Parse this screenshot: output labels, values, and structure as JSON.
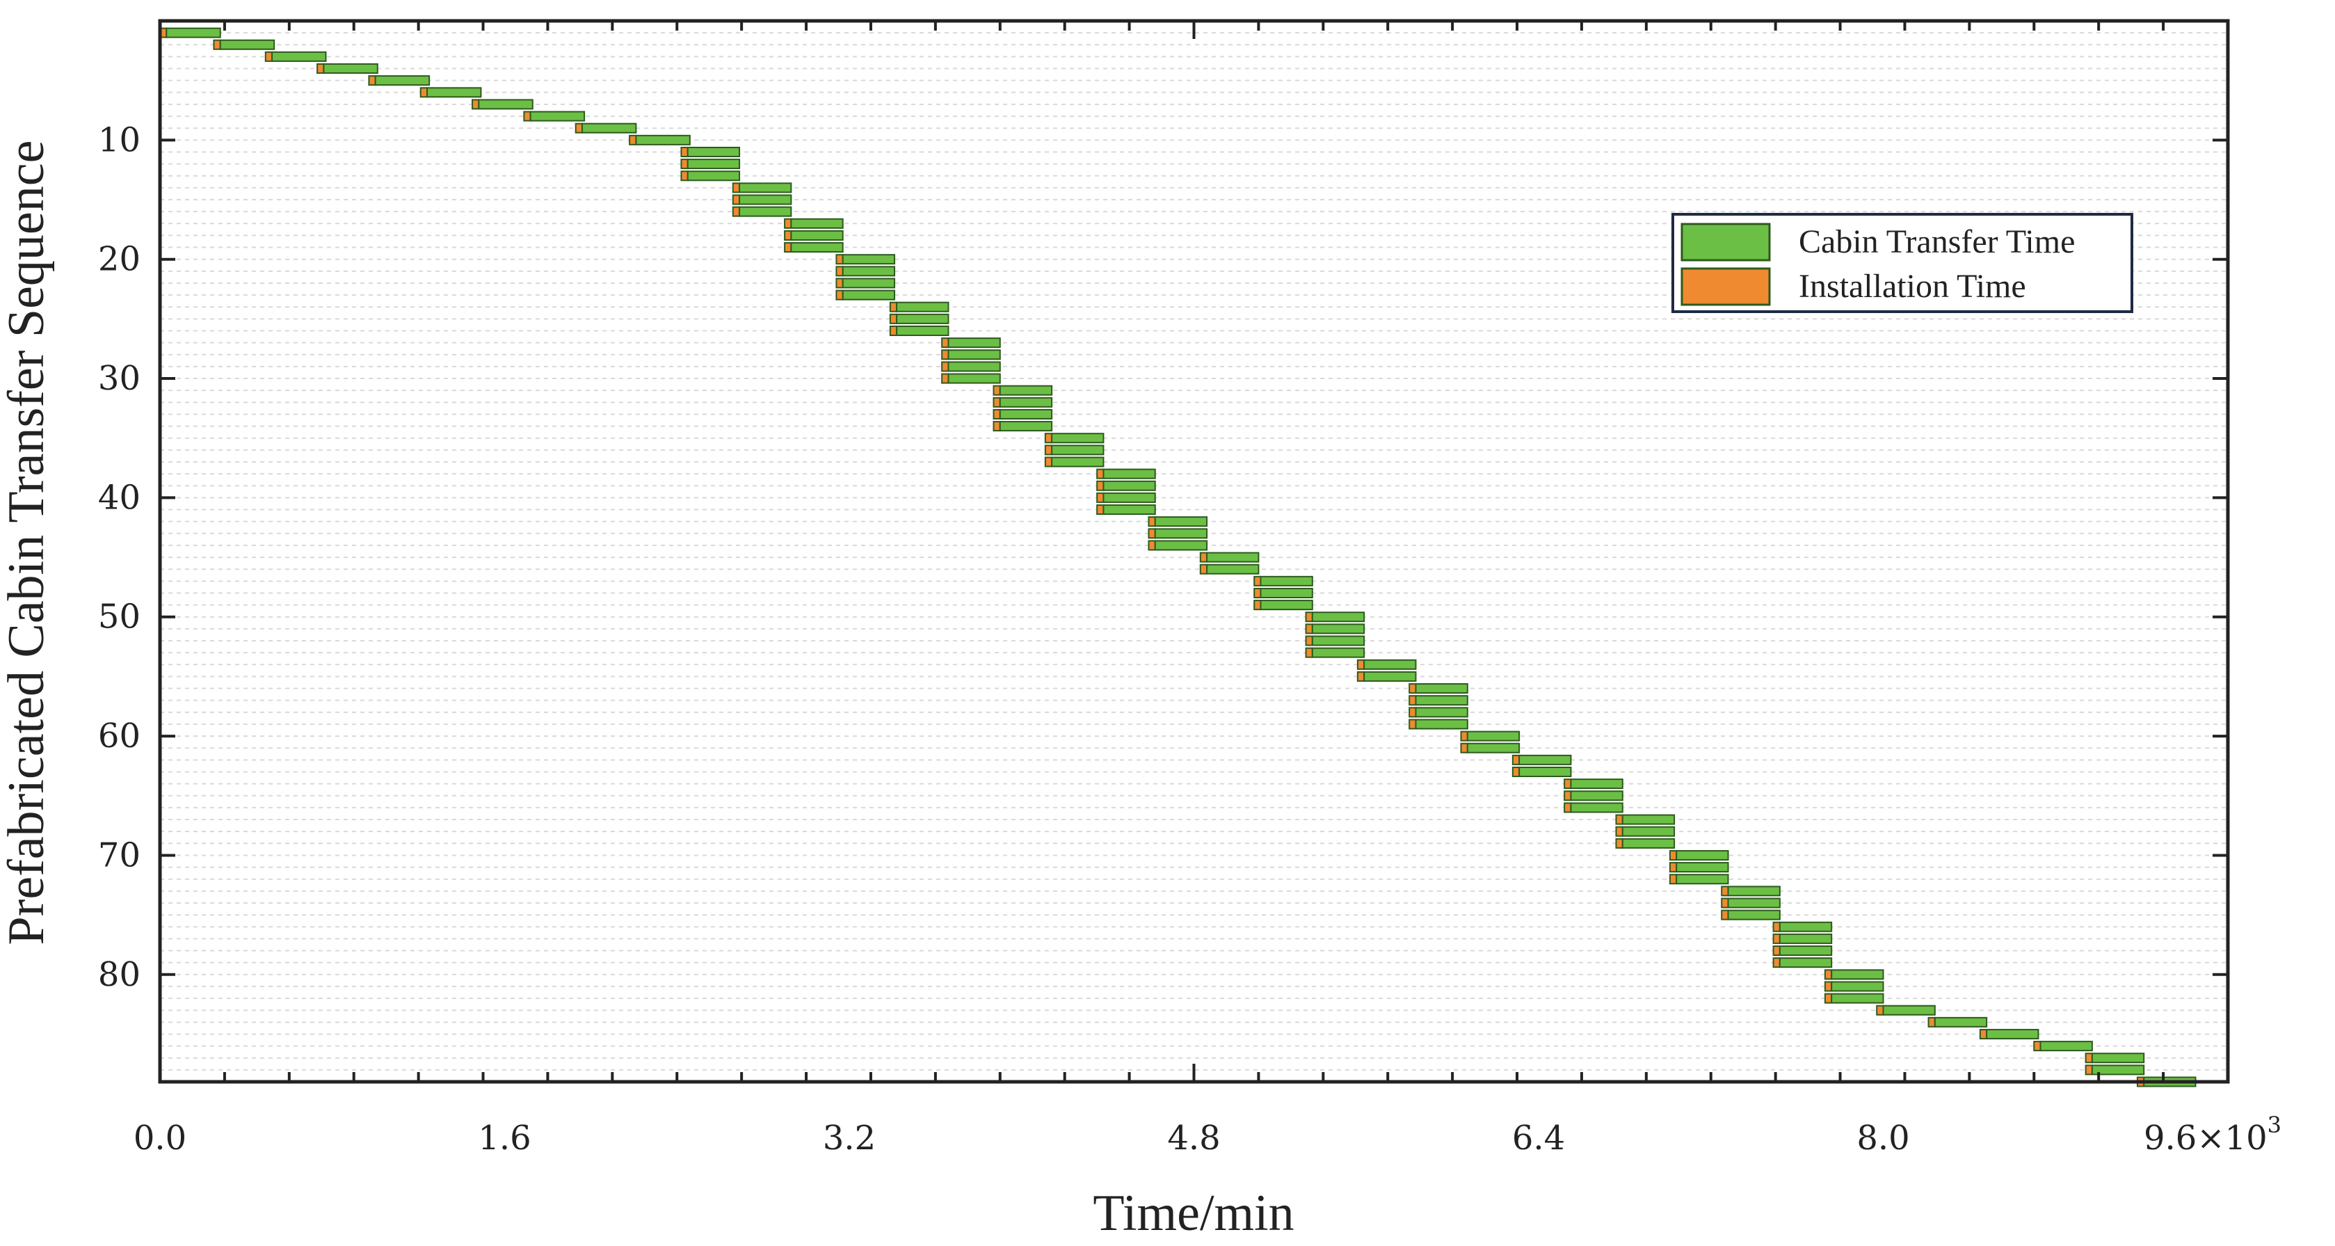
{
  "chart_data": {
    "type": "gantt",
    "xlabel": "Time/min",
    "ylabel": "Prefabricated Cabin Transfer Sequence",
    "xlim": [
      0,
      9600
    ],
    "ylim": [
      0,
      89
    ],
    "y_inverted": true,
    "x_ticks": [
      "0.0",
      "1.6",
      "3.2",
      "4.8",
      "6.4",
      "8.0",
      "9.6"
    ],
    "x_tick_values": [
      0,
      1600,
      3200,
      4800,
      6400,
      8000,
      9600
    ],
    "x_scale_note": "×10³",
    "x_scale_parts": [
      "9.6×10",
      "3"
    ],
    "y_ticks": [
      "10",
      "20",
      "30",
      "40",
      "50",
      "60",
      "70",
      "80"
    ],
    "y_tick_values": [
      10,
      20,
      30,
      40,
      50,
      60,
      70,
      80
    ],
    "grid": true,
    "legend": {
      "placement": "right",
      "entries": [
        {
          "label": "Cabin Transfer Time",
          "color": "#6cbf45"
        },
        {
          "label": "Installation Time",
          "color": "#f08a30"
        }
      ]
    },
    "colors": {
      "transfer": "#6cbf45",
      "installation": "#f08a30",
      "edge": "#2d5a1e"
    },
    "groups": [
      {
        "start": 0,
        "size": 1,
        "install": 30,
        "transfer": 250
      },
      {
        "start": 250,
        "size": 1,
        "install": 30,
        "transfer": 250
      },
      {
        "start": 490,
        "size": 1,
        "install": 30,
        "transfer": 250
      },
      {
        "start": 730,
        "size": 1,
        "install": 30,
        "transfer": 250
      },
      {
        "start": 970,
        "size": 1,
        "install": 30,
        "transfer": 250
      },
      {
        "start": 1210,
        "size": 1,
        "install": 30,
        "transfer": 250
      },
      {
        "start": 1450,
        "size": 1,
        "install": 30,
        "transfer": 250
      },
      {
        "start": 1690,
        "size": 1,
        "install": 30,
        "transfer": 250
      },
      {
        "start": 1930,
        "size": 1,
        "install": 30,
        "transfer": 250
      },
      {
        "start": 2180,
        "size": 1,
        "install": 30,
        "transfer": 250
      },
      {
        "start": 2420,
        "size": 3,
        "install": 30,
        "transfer": 240
      },
      {
        "start": 2660,
        "size": 3,
        "install": 30,
        "transfer": 240
      },
      {
        "start": 2900,
        "size": 3,
        "install": 30,
        "transfer": 240
      },
      {
        "start": 3140,
        "size": 4,
        "install": 30,
        "transfer": 240
      },
      {
        "start": 3390,
        "size": 3,
        "install": 30,
        "transfer": 240
      },
      {
        "start": 3630,
        "size": 4,
        "install": 30,
        "transfer": 240
      },
      {
        "start": 3870,
        "size": 4,
        "install": 30,
        "transfer": 240
      },
      {
        "start": 4110,
        "size": 3,
        "install": 30,
        "transfer": 240
      },
      {
        "start": 4350,
        "size": 4,
        "install": 30,
        "transfer": 240
      },
      {
        "start": 4590,
        "size": 3,
        "install": 30,
        "transfer": 240
      },
      {
        "start": 4830,
        "size": 2,
        "install": 30,
        "transfer": 240
      },
      {
        "start": 5080,
        "size": 3,
        "install": 30,
        "transfer": 240
      },
      {
        "start": 5320,
        "size": 4,
        "install": 30,
        "transfer": 240
      },
      {
        "start": 5560,
        "size": 2,
        "install": 30,
        "transfer": 240
      },
      {
        "start": 5800,
        "size": 4,
        "install": 30,
        "transfer": 240
      },
      {
        "start": 6040,
        "size": 2,
        "install": 30,
        "transfer": 240
      },
      {
        "start": 6280,
        "size": 2,
        "install": 30,
        "transfer": 240
      },
      {
        "start": 6520,
        "size": 3,
        "install": 30,
        "transfer": 240
      },
      {
        "start": 6760,
        "size": 3,
        "install": 30,
        "transfer": 240
      },
      {
        "start": 7010,
        "size": 3,
        "install": 30,
        "transfer": 240
      },
      {
        "start": 7250,
        "size": 3,
        "install": 30,
        "transfer": 240
      },
      {
        "start": 7490,
        "size": 4,
        "install": 30,
        "transfer": 240
      },
      {
        "start": 7730,
        "size": 3,
        "install": 30,
        "transfer": 240
      },
      {
        "start": 7970,
        "size": 1,
        "install": 30,
        "transfer": 240
      },
      {
        "start": 8210,
        "size": 1,
        "install": 30,
        "transfer": 240
      },
      {
        "start": 8450,
        "size": 1,
        "install": 30,
        "transfer": 240
      },
      {
        "start": 8700,
        "size": 1,
        "install": 30,
        "transfer": 240
      },
      {
        "start": 8940,
        "size": 2,
        "install": 30,
        "transfer": 240
      },
      {
        "start": 9180,
        "size": 1,
        "install": 30,
        "transfer": 240
      }
    ]
  }
}
